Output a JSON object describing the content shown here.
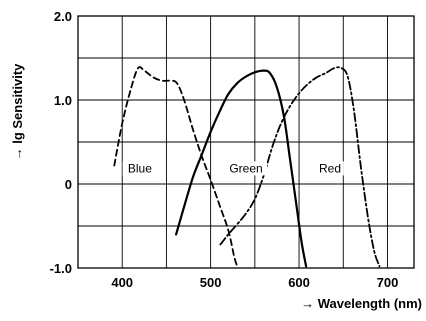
{
  "chart_data": {
    "type": "line",
    "xlabel": "→ Wavelength (nm)",
    "ylabel": "→ lg Sensitivity",
    "xlim": [
      350,
      730
    ],
    "ylim": [
      -1.0,
      2.0
    ],
    "x_ticks": [
      400,
      500,
      600,
      700
    ],
    "x_tick_labels": [
      "400",
      "500",
      "600",
      "700"
    ],
    "y_ticks": [
      -1.0,
      0,
      1.0,
      2.0
    ],
    "y_tick_labels": [
      "-1.0",
      "0",
      "1.0",
      "2.0"
    ],
    "grid": true,
    "colors": {
      "line": "#000000",
      "grid": "#000000",
      "background": "#ffffff"
    },
    "series": [
      {
        "name": "Blue",
        "dash": "dashed",
        "points": [
          [
            391,
            0.22
          ],
          [
            400,
            0.72
          ],
          [
            410,
            1.14
          ],
          [
            418,
            1.38
          ],
          [
            425,
            1.35
          ],
          [
            435,
            1.27
          ],
          [
            445,
            1.23
          ],
          [
            455,
            1.23
          ],
          [
            462,
            1.2
          ],
          [
            470,
            1.0
          ],
          [
            480,
            0.65
          ],
          [
            490,
            0.33
          ],
          [
            500,
            0.05
          ],
          [
            510,
            -0.25
          ],
          [
            520,
            -0.55
          ],
          [
            527,
            -0.88
          ],
          [
            531,
            -1.0
          ]
        ]
      },
      {
        "name": "Green",
        "dash": "solid",
        "points": [
          [
            461,
            -0.6
          ],
          [
            470,
            -0.27
          ],
          [
            480,
            0.08
          ],
          [
            490,
            0.35
          ],
          [
            500,
            0.62
          ],
          [
            510,
            0.86
          ],
          [
            520,
            1.07
          ],
          [
            530,
            1.2
          ],
          [
            540,
            1.28
          ],
          [
            550,
            1.33
          ],
          [
            560,
            1.35
          ],
          [
            567,
            1.32
          ],
          [
            575,
            1.15
          ],
          [
            583,
            0.8
          ],
          [
            590,
            0.28
          ],
          [
            597,
            -0.25
          ],
          [
            603,
            -0.7
          ],
          [
            608,
            -0.98
          ]
        ]
      },
      {
        "name": "Red",
        "dash": "dashdot",
        "points": [
          [
            511,
            -0.72
          ],
          [
            520,
            -0.6
          ],
          [
            530,
            -0.48
          ],
          [
            540,
            -0.35
          ],
          [
            550,
            -0.18
          ],
          [
            560,
            0.1
          ],
          [
            570,
            0.45
          ],
          [
            580,
            0.73
          ],
          [
            590,
            0.93
          ],
          [
            600,
            1.08
          ],
          [
            610,
            1.19
          ],
          [
            620,
            1.27
          ],
          [
            630,
            1.32
          ],
          [
            640,
            1.38
          ],
          [
            648,
            1.38
          ],
          [
            655,
            1.28
          ],
          [
            662,
            0.88
          ],
          [
            670,
            0.2
          ],
          [
            678,
            -0.4
          ],
          [
            685,
            -0.8
          ],
          [
            691,
            -0.98
          ]
        ]
      }
    ]
  },
  "curve_labels": [
    {
      "text": "Blue",
      "x": 420,
      "y": 0.15
    },
    {
      "text": "Green",
      "x": 540,
      "y": 0.15
    },
    {
      "text": "Red",
      "x": 635,
      "y": 0.15
    }
  ]
}
